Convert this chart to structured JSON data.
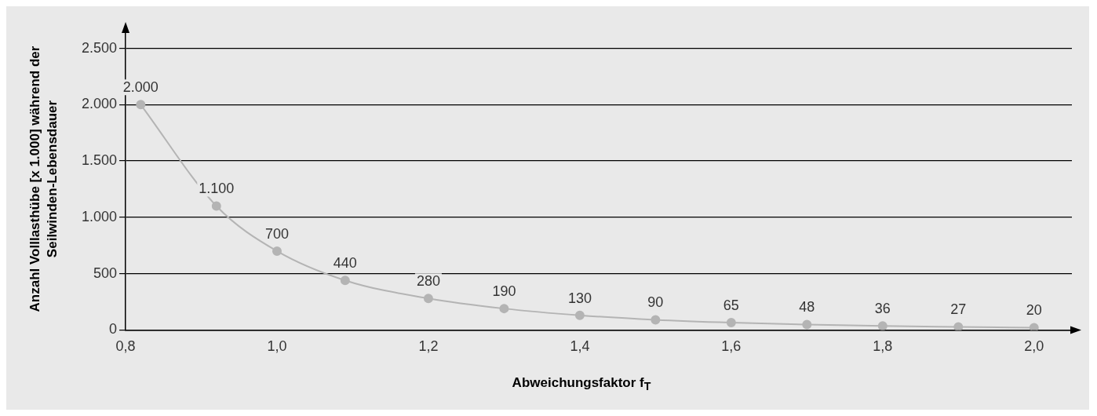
{
  "chart_data": {
    "type": "line",
    "xlabel": "Abweichungsfaktor f$_{T}$",
    "ylabel": "Anzahl Volllasthübe [x 1.000] während der Seilwinden-Lebensdauer",
    "x": [
      0.82,
      0.92,
      1.0,
      1.09,
      1.2,
      1.3,
      1.4,
      1.5,
      1.6,
      1.7,
      1.8,
      1.9,
      2.0
    ],
    "series": [
      {
        "color": "#b4b4b4",
        "values": [
          2000,
          1100,
          700,
          440,
          280,
          190,
          130,
          90,
          65,
          48,
          36,
          27,
          20
        ],
        "value_labels": [
          "2.000",
          "1.100",
          "700",
          "440",
          "280",
          "190",
          "130",
          "90",
          "65",
          "48",
          "36",
          "27",
          "20"
        ]
      }
    ],
    "marker": "circle",
    "line_style": "solid",
    "grid": "y",
    "legend": false,
    "xlim": [
      0.8,
      2.05
    ],
    "ylim": [
      0,
      2650
    ],
    "xticks": [
      {
        "value": 0.8,
        "label": "0,8"
      },
      {
        "value": 1.0,
        "label": "1,0"
      },
      {
        "value": 1.2,
        "label": "1,2"
      },
      {
        "value": 1.4,
        "label": "1,4"
      },
      {
        "value": 1.6,
        "label": "1,6"
      },
      {
        "value": 1.8,
        "label": "1,8"
      },
      {
        "value": 2.0,
        "label": "2,0"
      }
    ],
    "yticks": [
      0,
      500,
      {
        "value": 1000,
        "label": "1.000"
      },
      {
        "value": 1500,
        "label": "1.500"
      },
      {
        "value": 2000,
        "label": "2.000"
      },
      {
        "value": 2500,
        "label": "2.500"
      }
    ]
  }
}
